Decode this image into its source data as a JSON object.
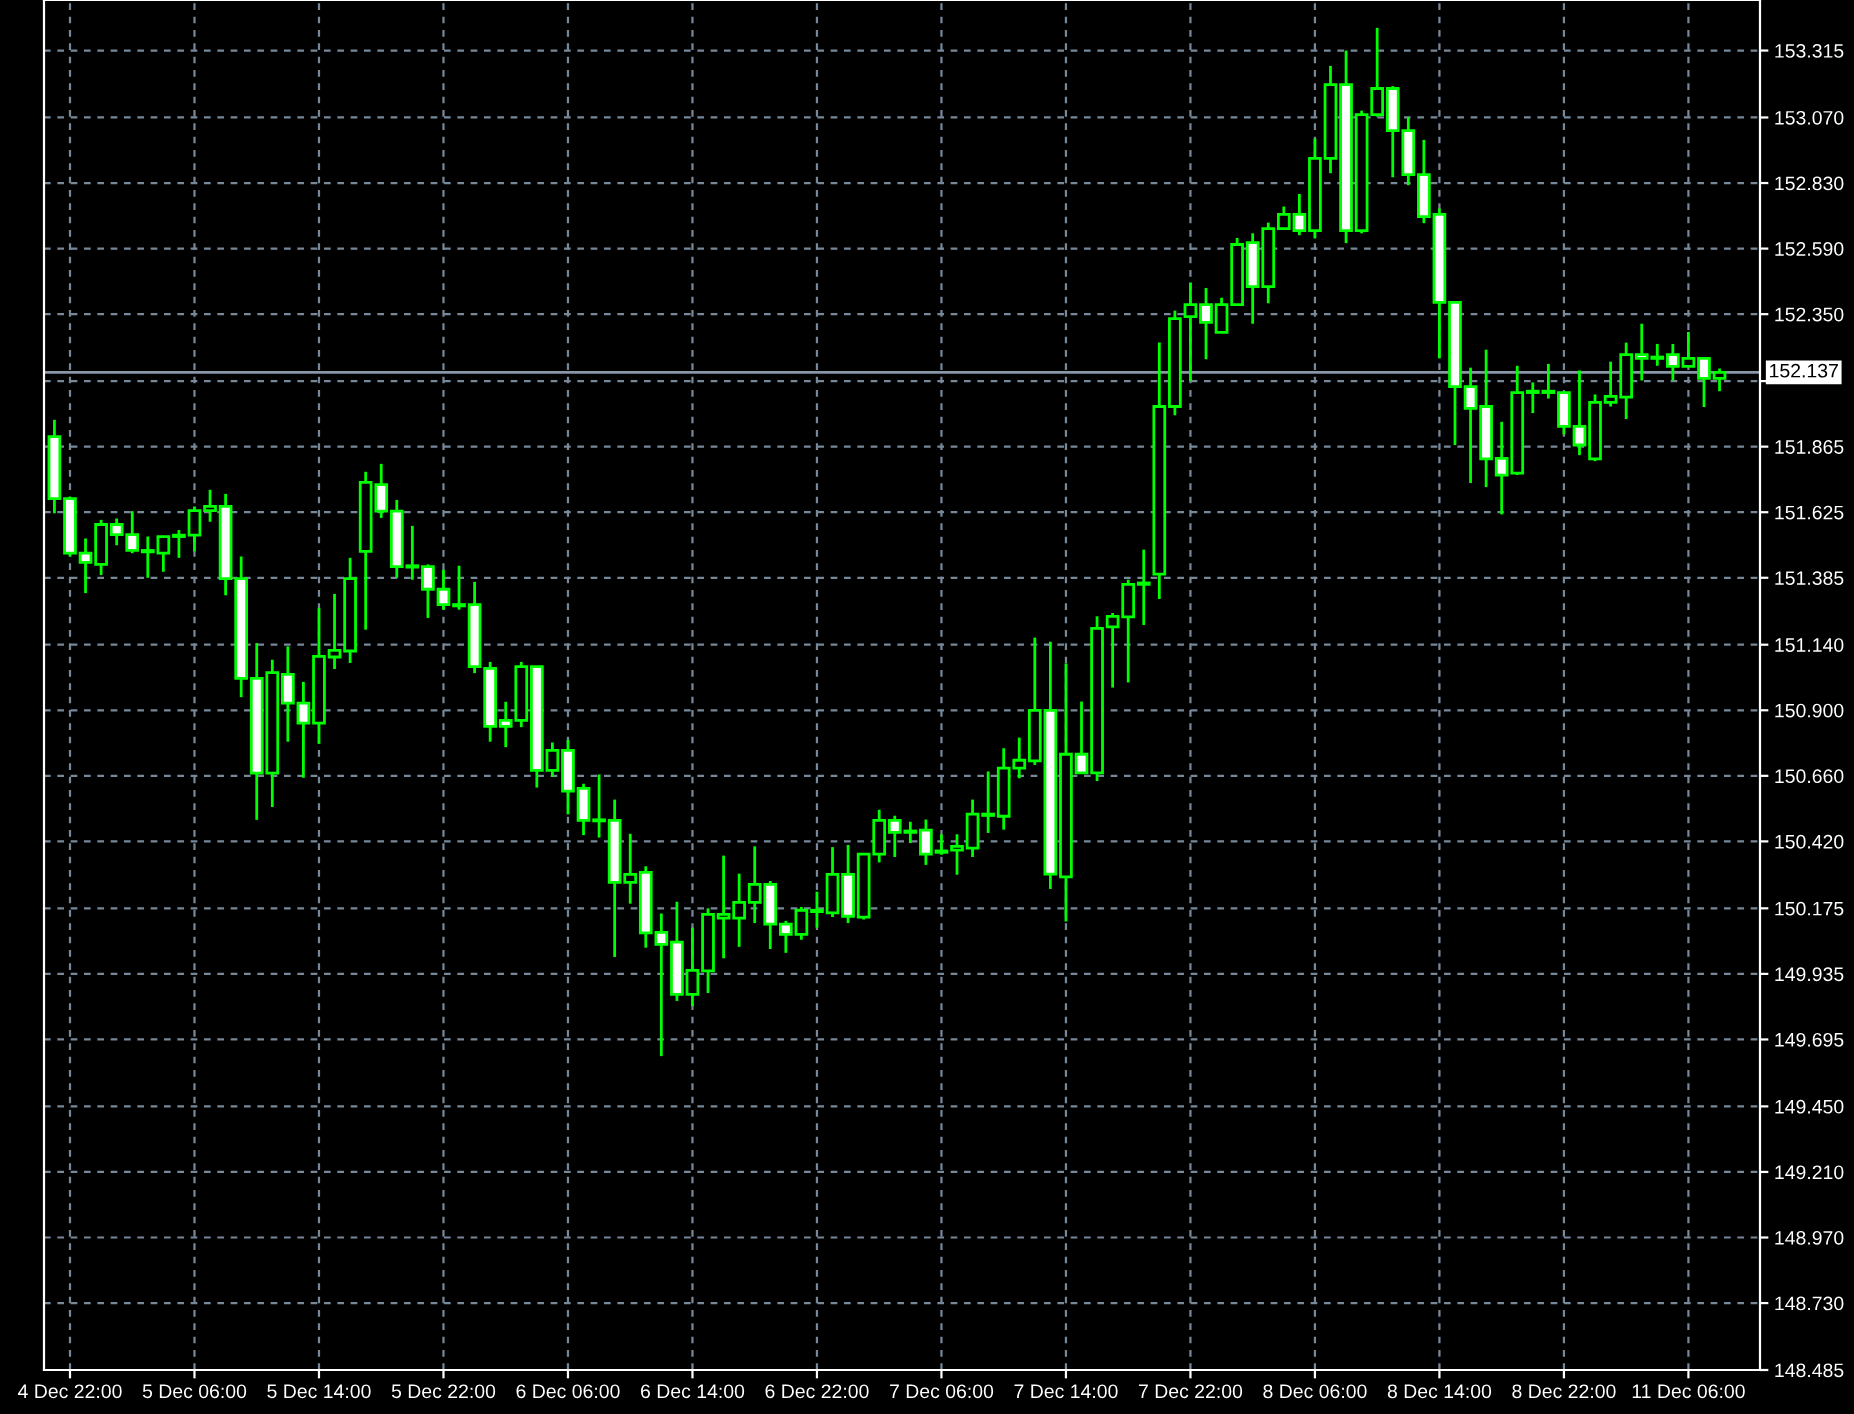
{
  "chart_data": {
    "type": "candlestick",
    "categories": [
      null,
      "4 Dec 22:00",
      null,
      null,
      null,
      null,
      null,
      null,
      null,
      "5 Dec 06:00",
      null,
      null,
      null,
      null,
      null,
      null,
      null,
      "5 Dec 14:00",
      null,
      null,
      null,
      null,
      null,
      null,
      null,
      "5 Dec 22:00",
      null,
      null,
      null,
      null,
      null,
      null,
      null,
      "6 Dec 06:00",
      null,
      null,
      null,
      null,
      null,
      null,
      null,
      "6 Dec 14:00",
      null,
      null,
      null,
      null,
      null,
      null,
      null,
      "6 Dec 22:00",
      null,
      null,
      null,
      null,
      null,
      null,
      null,
      "7 Dec 06:00",
      null,
      null,
      null,
      null,
      null,
      null,
      null,
      "7 Dec 14:00",
      null,
      null,
      null,
      null,
      null,
      null,
      null,
      "7 Dec 22:00",
      null,
      null,
      null,
      null,
      null,
      null,
      null,
      "8 Dec 06:00",
      null,
      null,
      null,
      null,
      null,
      null,
      null,
      "8 Dec 14:00",
      null,
      null,
      null,
      null,
      null,
      null,
      null,
      "8 Dec 22:00",
      null,
      null,
      null,
      null,
      null,
      null,
      null,
      "11 Dec 06:00",
      null,
      null
    ],
    "series": [
      {
        "color": "#00ff00",
        "ohlc": [
          [
            151.902,
            151.963,
            151.621,
            151.675
          ],
          [
            151.675,
            151.682,
            151.463,
            151.475
          ],
          [
            151.475,
            151.529,
            151.329,
            151.441
          ],
          [
            151.434,
            151.597,
            151.395,
            151.58
          ],
          [
            151.58,
            151.602,
            151.504,
            151.543
          ],
          [
            151.543,
            151.629,
            151.475,
            151.485
          ],
          [
            151.485,
            151.536,
            151.385,
            151.48
          ],
          [
            151.475,
            151.536,
            151.407,
            151.536
          ],
          [
            151.536,
            151.56,
            151.458,
            151.541
          ],
          [
            151.541,
            151.646,
            151.482,
            151.631
          ],
          [
            151.631,
            151.707,
            151.59,
            151.646
          ],
          [
            151.646,
            151.692,
            151.321,
            151.382
          ],
          [
            151.382,
            151.463,
            150.948,
            151.017
          ],
          [
            151.017,
            151.146,
            150.499,
            150.67
          ],
          [
            150.67,
            151.085,
            150.546,
            151.038
          ],
          [
            151.031,
            151.134,
            150.785,
            150.926
          ],
          [
            150.926,
            151.004,
            150.653,
            150.853
          ],
          [
            150.853,
            151.275,
            150.777,
            151.097
          ],
          [
            151.095,
            151.326,
            151.051,
            151.119
          ],
          [
            151.117,
            151.458,
            151.073,
            151.382
          ],
          [
            151.482,
            151.773,
            151.195,
            151.734
          ],
          [
            151.726,
            151.802,
            151.604,
            151.629
          ],
          [
            151.629,
            151.67,
            151.385,
            151.426
          ],
          [
            151.429,
            151.575,
            151.378,
            151.424
          ],
          [
            151.426,
            151.434,
            151.238,
            151.343
          ],
          [
            151.343,
            151.414,
            151.268,
            151.287
          ],
          [
            151.287,
            151.429,
            151.268,
            151.282
          ],
          [
            151.287,
            151.37,
            151.036,
            151.06
          ],
          [
            151.053,
            151.077,
            150.785,
            150.841
          ],
          [
            150.863,
            150.931,
            150.765,
            150.841
          ],
          [
            150.863,
            151.077,
            150.838,
            151.06
          ],
          [
            151.06,
            151.06,
            150.617,
            150.68
          ],
          [
            150.68,
            150.782,
            150.656,
            150.753
          ],
          [
            150.753,
            150.792,
            150.519,
            150.604
          ],
          [
            150.614,
            150.631,
            150.443,
            150.497
          ],
          [
            150.499,
            150.665,
            150.434,
            150.495
          ],
          [
            150.497,
            150.573,
            149.997,
            150.27
          ],
          [
            150.27,
            150.448,
            150.192,
            150.299
          ],
          [
            150.307,
            150.329,
            150.031,
            150.085
          ],
          [
            150.087,
            150.156,
            149.634,
            150.043
          ],
          [
            150.051,
            150.199,
            149.836,
            149.86
          ],
          [
            149.86,
            150.104,
            149.817,
            149.948
          ],
          [
            149.946,
            150.175,
            149.865,
            150.153
          ],
          [
            150.139,
            150.368,
            149.992,
            150.153
          ],
          [
            150.139,
            150.302,
            150.034,
            150.197
          ],
          [
            150.197,
            150.402,
            150.121,
            150.263
          ],
          [
            150.263,
            150.275,
            150.026,
            150.117
          ],
          [
            150.117,
            150.129,
            150.012,
            150.08
          ],
          [
            150.08,
            150.18,
            150.06,
            150.168
          ],
          [
            150.163,
            150.236,
            150.104,
            150.168
          ],
          [
            150.158,
            150.399,
            150.143,
            150.299
          ],
          [
            150.299,
            150.407,
            150.121,
            150.146
          ],
          [
            150.143,
            150.373,
            150.134,
            150.373
          ],
          [
            150.373,
            150.536,
            150.343,
            150.497
          ],
          [
            150.497,
            150.514,
            150.363,
            150.453
          ],
          [
            150.458,
            150.492,
            150.414,
            150.453
          ],
          [
            150.461,
            150.5,
            150.334,
            150.373
          ],
          [
            150.385,
            150.446,
            150.371,
            150.38
          ],
          [
            150.388,
            150.446,
            150.298,
            150.402
          ],
          [
            150.395,
            150.573,
            150.363,
            150.52
          ],
          [
            150.515,
            150.676,
            150.451,
            150.52
          ],
          [
            150.512,
            150.761,
            150.463,
            150.688
          ],
          [
            150.688,
            150.8,
            150.651,
            150.717
          ],
          [
            150.715,
            151.166,
            150.7,
            150.9
          ],
          [
            150.9,
            151.151,
            150.246,
            150.3
          ],
          [
            150.29,
            151.071,
            150.127,
            150.739
          ],
          [
            150.739,
            150.932,
            150.671,
            150.671
          ],
          [
            150.671,
            151.244,
            150.641,
            151.2
          ],
          [
            151.205,
            151.256,
            150.983,
            151.244
          ],
          [
            151.242,
            151.378,
            151.002,
            151.361
          ],
          [
            151.366,
            151.488,
            151.212,
            151.361
          ],
          [
            151.398,
            152.246,
            151.307,
            152.012
          ],
          [
            152.012,
            152.363,
            151.98,
            152.334
          ],
          [
            152.341,
            152.466,
            152.105,
            152.385
          ],
          [
            152.385,
            152.446,
            152.185,
            152.32
          ],
          [
            152.283,
            152.41,
            152.283,
            152.385
          ],
          [
            152.385,
            152.629,
            152.385,
            152.605
          ],
          [
            152.612,
            152.646,
            152.315,
            152.451
          ],
          [
            152.451,
            152.685,
            152.39,
            152.663
          ],
          [
            152.663,
            152.744,
            152.663,
            152.715
          ],
          [
            152.715,
            152.79,
            152.639,
            152.656
          ],
          [
            152.656,
            152.993,
            152.627,
            152.92
          ],
          [
            152.92,
            153.259,
            152.866,
            153.19
          ],
          [
            153.19,
            153.315,
            152.61,
            152.656
          ],
          [
            152.656,
            153.095,
            152.646,
            153.08
          ],
          [
            153.08,
            153.398,
            153.073,
            153.176
          ],
          [
            153.176,
            153.185,
            152.851,
            153.022
          ],
          [
            153.022,
            153.071,
            152.822,
            152.861
          ],
          [
            152.861,
            152.988,
            152.683,
            152.707
          ],
          [
            152.715,
            152.737,
            152.188,
            152.393
          ],
          [
            152.393,
            152.393,
            151.871,
            152.085
          ],
          [
            152.085,
            152.154,
            151.732,
            152.005
          ],
          [
            152.012,
            152.22,
            151.717,
            151.82
          ],
          [
            151.822,
            151.956,
            151.617,
            151.761
          ],
          [
            151.768,
            152.161,
            151.761,
            152.063
          ],
          [
            152.068,
            152.1,
            151.988,
            152.063
          ],
          [
            152.063,
            152.168,
            152.041,
            152.068
          ],
          [
            152.063,
            152.063,
            151.91,
            151.939
          ],
          [
            151.939,
            152.144,
            151.834,
            151.871
          ],
          [
            151.82,
            152.056,
            151.812,
            152.027
          ],
          [
            152.027,
            152.176,
            152.012,
            152.049
          ],
          [
            152.046,
            152.246,
            151.966,
            152.202
          ],
          [
            152.202,
            152.315,
            152.107,
            152.188
          ],
          [
            152.193,
            152.241,
            152.161,
            152.188
          ],
          [
            152.202,
            152.241,
            152.107,
            152.159
          ],
          [
            152.159,
            152.285,
            152.159,
            152.188
          ],
          [
            152.188,
            152.188,
            152.01,
            152.115
          ],
          [
            152.115,
            152.151,
            152.068,
            152.137
          ]
        ]
      }
    ],
    "ylim": [
      148.485,
      153.5
    ],
    "yticks": [
      {
        "value": 148.485,
        "label": "148.485"
      },
      {
        "value": 148.73,
        "label": "148.730"
      },
      {
        "value": 148.97,
        "label": "148.970"
      },
      {
        "value": 149.21,
        "label": "149.210"
      },
      {
        "value": 149.45,
        "label": "149.450"
      },
      {
        "value": 149.695,
        "label": "149.695"
      },
      {
        "value": 149.935,
        "label": "149.935"
      },
      {
        "value": 150.175,
        "label": "150.175"
      },
      {
        "value": 150.42,
        "label": "150.420"
      },
      {
        "value": 150.66,
        "label": "150.660"
      },
      {
        "value": 150.9,
        "label": "150.900"
      },
      {
        "value": 151.14,
        "label": "151.140"
      },
      {
        "value": 151.385,
        "label": "151.385"
      },
      {
        "value": 151.625,
        "label": "151.625"
      },
      {
        "value": 151.865,
        "label": "151.865"
      },
      {
        "value": 152.105,
        "label": null
      },
      {
        "value": 152.35,
        "label": "152.350"
      },
      {
        "value": 152.59,
        "label": "152.590"
      },
      {
        "value": 152.83,
        "label": "152.830"
      },
      {
        "value": 153.07,
        "label": "153.070"
      },
      {
        "value": 153.315,
        "label": "153.315"
      }
    ],
    "ref_lines": [
      {
        "axis": "y",
        "value": 152.137,
        "label": "152.137",
        "color": "#8797a8"
      }
    ],
    "grid": true
  }
}
